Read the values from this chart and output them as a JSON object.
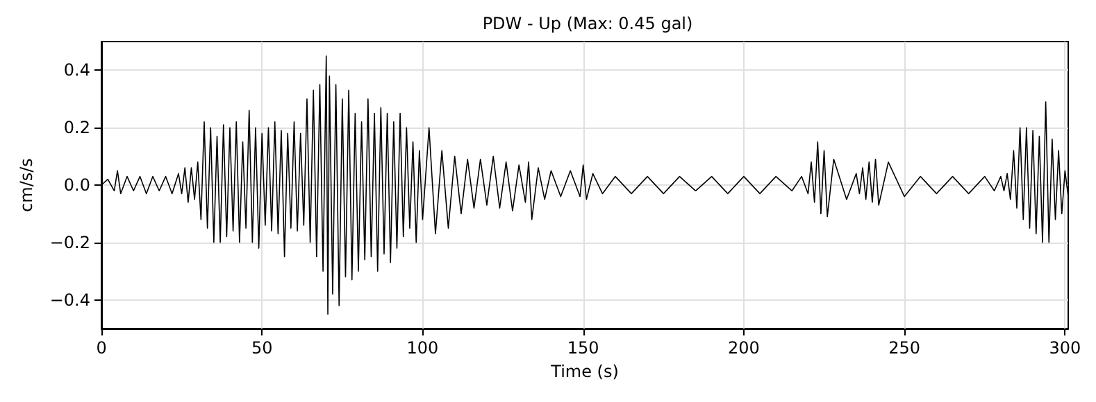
{
  "chart_data": {
    "type": "line",
    "title": "PDW - Up (Max: 0.45 gal)",
    "xlabel": "Time (s)",
    "ylabel": "cm/s/s",
    "xlim": [
      0,
      301
    ],
    "xticks": [
      0,
      50,
      100,
      150,
      200,
      250,
      300
    ],
    "ylim": [
      -0.5,
      0.5
    ],
    "yticks": [
      {
        "value": -0.4,
        "label": "−0.4"
      },
      {
        "value": -0.2,
        "label": "−0.2"
      },
      {
        "value": 0,
        "label": "0.0"
      },
      {
        "value": 0.2,
        "label": "0.2"
      },
      {
        "value": 0.4,
        "label": "0.4"
      }
    ],
    "grid": true,
    "marker": "none",
    "line_style": "solid",
    "series": [
      {
        "color": "#000000",
        "x": [
          0,
          2,
          4,
          5,
          6,
          8,
          10,
          12,
          14,
          16,
          18,
          20,
          22,
          24,
          25,
          26,
          27,
          28,
          29,
          30,
          31,
          32,
          33,
          34,
          35,
          36,
          37,
          38,
          39,
          40,
          41,
          42,
          43,
          44,
          45,
          46,
          47,
          48,
          49,
          50,
          51,
          52,
          53,
          54,
          55,
          56,
          57,
          58,
          59,
          60,
          61,
          62,
          63,
          64,
          65,
          66,
          67,
          68,
          69,
          70,
          70.5,
          71,
          72,
          73,
          74,
          75,
          76,
          77,
          78,
          79,
          80,
          81,
          82,
          83,
          84,
          85,
          86,
          87,
          88,
          89,
          90,
          91,
          92,
          93,
          94,
          95,
          96,
          97,
          98,
          99,
          100,
          102,
          104,
          106,
          108,
          110,
          112,
          114,
          116,
          118,
          120,
          122,
          124,
          126,
          128,
          130,
          132,
          133,
          134,
          136,
          138,
          140,
          143,
          146,
          149,
          150,
          151,
          153,
          156,
          160,
          165,
          170,
          175,
          180,
          185,
          190,
          195,
          200,
          205,
          210,
          215,
          218,
          220,
          221,
          222,
          223,
          224,
          225,
          226,
          228,
          232,
          235,
          236,
          237,
          238,
          239,
          240,
          241,
          242,
          245,
          250,
          255,
          260,
          265,
          270,
          275,
          278,
          280,
          281,
          282,
          283,
          284,
          285,
          286,
          287,
          288,
          289,
          290,
          291,
          292,
          293,
          294,
          295,
          296,
          297,
          298,
          299,
          300,
          301
        ],
        "values": [
          0,
          0.02,
          -0.02,
          0.05,
          -0.03,
          0.03,
          -0.02,
          0.03,
          -0.03,
          0.03,
          -0.02,
          0.03,
          -0.03,
          0.04,
          -0.03,
          0.06,
          -0.06,
          0.06,
          -0.05,
          0.08,
          -0.12,
          0.22,
          -0.15,
          0.2,
          -0.2,
          0.17,
          -0.2,
          0.21,
          -0.18,
          0.2,
          -0.16,
          0.22,
          -0.2,
          0.15,
          -0.15,
          0.26,
          -0.2,
          0.2,
          -0.22,
          0.18,
          -0.14,
          0.2,
          -0.16,
          0.22,
          -0.17,
          0.19,
          -0.25,
          0.18,
          -0.15,
          0.22,
          -0.16,
          0.18,
          -0.14,
          0.3,
          -0.2,
          0.33,
          -0.25,
          0.35,
          -0.3,
          0.45,
          -0.45,
          0.38,
          -0.38,
          0.35,
          -0.42,
          0.3,
          -0.32,
          0.33,
          -0.33,
          0.25,
          -0.3,
          0.22,
          -0.26,
          0.3,
          -0.25,
          0.25,
          -0.3,
          0.27,
          -0.24,
          0.25,
          -0.27,
          0.22,
          -0.22,
          0.25,
          -0.18,
          0.2,
          -0.15,
          0.15,
          -0.2,
          0.12,
          -0.12,
          0.2,
          -0.17,
          0.12,
          -0.15,
          0.1,
          -0.1,
          0.09,
          -0.08,
          0.09,
          -0.07,
          0.1,
          -0.08,
          0.08,
          -0.09,
          0.07,
          -0.06,
          0.08,
          -0.12,
          0.06,
          -0.05,
          0.05,
          -0.04,
          0.05,
          -0.04,
          0.07,
          -0.05,
          0.04,
          -0.03,
          0.03,
          -0.03,
          0.03,
          -0.03,
          0.03,
          -0.02,
          0.03,
          -0.03,
          0.03,
          -0.03,
          0.03,
          -0.02,
          0.03,
          -0.03,
          0.08,
          -0.06,
          0.15,
          -0.1,
          0.12,
          -0.11,
          0.09,
          -0.05,
          0.04,
          -0.03,
          0.06,
          -0.05,
          0.08,
          -0.06,
          0.09,
          -0.07,
          0.08,
          -0.04,
          0.03,
          -0.03,
          0.03,
          -0.03,
          0.03,
          -0.02,
          0.03,
          -0.02,
          0.04,
          -0.05,
          0.12,
          -0.08,
          0.2,
          -0.12,
          0.2,
          -0.15,
          0.19,
          -0.17,
          0.17,
          -0.2,
          0.29,
          -0.2,
          0.16,
          -0.12,
          0.12,
          -0.1,
          0.05,
          -0.04
        ]
      }
    ]
  }
}
